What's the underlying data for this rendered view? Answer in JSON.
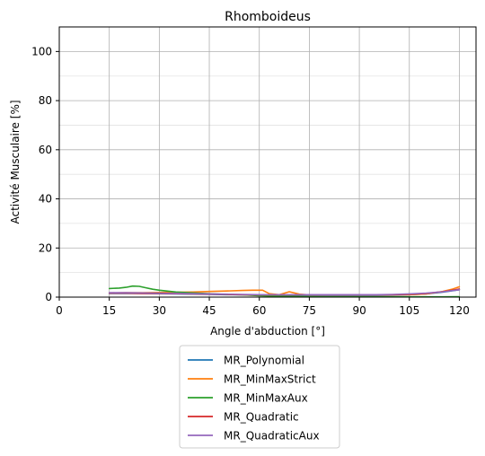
{
  "chart_data": {
    "type": "line",
    "title": "Rhomboideus",
    "xlabel": "Angle d'abduction [°]",
    "ylabel": "Activité Musculaire [%]",
    "xlim": [
      0,
      125
    ],
    "ylim": [
      0,
      110
    ],
    "xticks": [
      0,
      15,
      30,
      45,
      60,
      75,
      90,
      105,
      120
    ],
    "yticks": [
      0,
      20,
      40,
      60,
      80,
      100
    ],
    "grid": true,
    "legend_position": "below",
    "series": [
      {
        "name": "MR_Polynomial",
        "color": "#1f77b4",
        "x": [
          15,
          20,
          25,
          30,
          35,
          40,
          45,
          50,
          55,
          60,
          65,
          70,
          75,
          80,
          85,
          90,
          95,
          100,
          105,
          110,
          115,
          120
        ],
        "y": [
          1.5,
          1.5,
          1.5,
          1.4,
          1.3,
          1.2,
          1.1,
          1.0,
          0.9,
          0.8,
          0.8,
          0.8,
          0.7,
          0.7,
          0.7,
          0.7,
          0.7,
          0.8,
          1.0,
          1.3,
          2.0,
          3.0
        ]
      },
      {
        "name": "MR_MinMaxStrict",
        "color": "#ff7f0e",
        "x": [
          15,
          20,
          25,
          30,
          35,
          40,
          45,
          50,
          55,
          58,
          61,
          63,
          66,
          69,
          72,
          75,
          80,
          85,
          90,
          95,
          100,
          105,
          110,
          115,
          118,
          120
        ],
        "y": [
          1.7,
          1.8,
          1.8,
          1.9,
          2.0,
          2.1,
          2.3,
          2.5,
          2.7,
          2.8,
          2.8,
          1.4,
          1.0,
          2.2,
          1.2,
          0.9,
          0.9,
          0.9,
          0.9,
          0.9,
          0.9,
          1.0,
          1.3,
          2.3,
          3.3,
          4.2
        ]
      },
      {
        "name": "MR_MinMaxAux",
        "color": "#2ca02c",
        "x": [
          15,
          18,
          20,
          22,
          24,
          26,
          28,
          30,
          35,
          40,
          45,
          50,
          55,
          60,
          65,
          70,
          75,
          80,
          85,
          90,
          95,
          100,
          105,
          110,
          115,
          120
        ],
        "y": [
          3.5,
          3.7,
          4.0,
          4.5,
          4.4,
          3.8,
          3.2,
          2.8,
          2.1,
          1.7,
          1.4,
          1.1,
          0.9,
          0.6,
          0.4,
          0.3,
          0.2,
          0.1,
          0.1,
          0.1,
          0.1,
          0.1,
          0.1,
          0.1,
          0.1,
          0.2
        ]
      },
      {
        "name": "MR_Quadratic",
        "color": "#d62728",
        "x": [
          15,
          20,
          25,
          30,
          35,
          40,
          45,
          50,
          55,
          60,
          65,
          70,
          75,
          80,
          85,
          90,
          95,
          100,
          105,
          110,
          115,
          120
        ],
        "y": [
          1.6,
          1.6,
          1.5,
          1.5,
          1.4,
          1.3,
          1.2,
          1.1,
          1.0,
          0.9,
          0.9,
          0.9,
          0.9,
          0.9,
          0.9,
          0.9,
          0.9,
          1.0,
          1.1,
          1.5,
          2.2,
          3.3
        ]
      },
      {
        "name": "MR_QuadraticAux",
        "color": "#9467bd",
        "x": [
          15,
          20,
          25,
          30,
          35,
          40,
          45,
          50,
          55,
          60,
          65,
          70,
          75,
          80,
          85,
          90,
          95,
          100,
          105,
          110,
          115,
          120
        ],
        "y": [
          1.8,
          1.8,
          1.7,
          1.6,
          1.5,
          1.4,
          1.3,
          1.2,
          1.1,
          1.0,
          1.0,
          1.0,
          1.0,
          1.0,
          1.0,
          1.0,
          1.0,
          1.1,
          1.3,
          1.6,
          2.2,
          3.0
        ]
      }
    ]
  }
}
